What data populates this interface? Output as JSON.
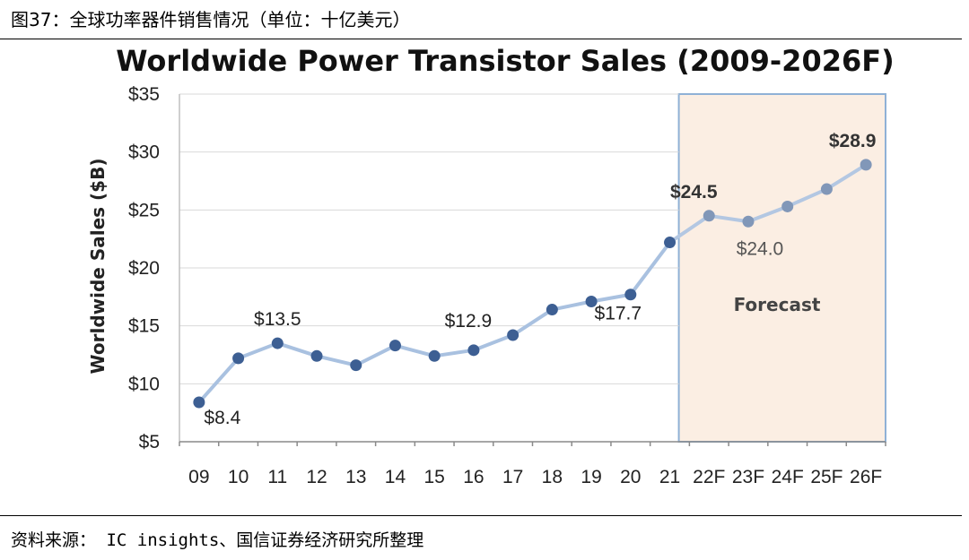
{
  "caption": "图37：全球功率器件销售情况（单位：十亿美元）",
  "source": "资料来源： IC insights、国信证券经济研究所整理",
  "colors": {
    "actual_line": "#a9c1e0",
    "actual_marker": "#3d5f93",
    "forecast_line": "#b3c7e2",
    "forecast_marker": "#8197b8",
    "forecast_fill": "#fbeee3",
    "forecast_border": "#8fb1d6",
    "grid": "#d9d9d9"
  },
  "chart_data": {
    "type": "line",
    "title": "Worldwide Power Transistor Sales (2009-2026F)",
    "xlabel": "",
    "ylabel": "Worldwide Sales ($B)",
    "ylim": [
      5,
      35
    ],
    "ytick_values": [
      5,
      10,
      15,
      20,
      25,
      30,
      35
    ],
    "ytick_labels": [
      "$5",
      "$10",
      "$15",
      "$20",
      "$25",
      "$30",
      "$35"
    ],
    "categories": [
      "09",
      "10",
      "11",
      "12",
      "13",
      "14",
      "15",
      "16",
      "17",
      "18",
      "19",
      "20",
      "21",
      "22F",
      "23F",
      "24F",
      "25F",
      "26F"
    ],
    "values": [
      8.4,
      12.2,
      13.5,
      12.4,
      11.6,
      13.3,
      12.4,
      12.9,
      14.2,
      16.4,
      17.1,
      17.7,
      22.2,
      24.5,
      24.0,
      25.3,
      26.8,
      28.9
    ],
    "forecast_start_index": 13,
    "forecast_label": "Forecast",
    "grid": true,
    "data_labels": [
      {
        "index": 0,
        "text": "$8.4",
        "style": "normal"
      },
      {
        "index": 2,
        "text": "$13.5",
        "style": "normal"
      },
      {
        "index": 7,
        "text": "$12.9",
        "style": "normal"
      },
      {
        "index": 11,
        "text": "$17.7",
        "style": "normal"
      },
      {
        "index": 13,
        "text": "$24.5",
        "style": "bold"
      },
      {
        "index": 14,
        "text": "$24.0",
        "style": "grey"
      },
      {
        "index": 17,
        "text": "$28.9",
        "style": "bold"
      }
    ]
  }
}
